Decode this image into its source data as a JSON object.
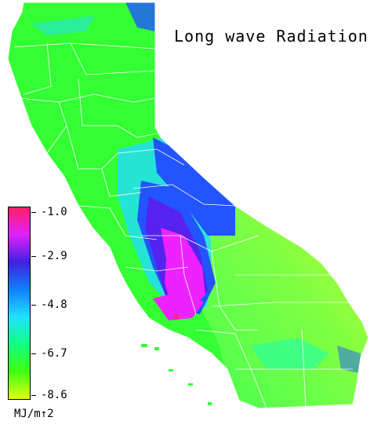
{
  "title": "Long wave Radiation",
  "legend": {
    "unit": "MJ/m↑2",
    "ticks": [
      "-1.0",
      "-2.9",
      "-4.8",
      "-6.7",
      "-8.6"
    ],
    "colors": [
      "#ff2060",
      "#e020ff",
      "#4020e0",
      "#1080ff",
      "#20e0ff",
      "#10ff80",
      "#40ff10",
      "#e0ff10"
    ]
  },
  "map": {
    "region": "California",
    "palette": {
      "green": "#33ff33",
      "teal": "#22ffaa",
      "cyan": "#22ddff",
      "blue": "#2255ff",
      "violet": "#5522ee",
      "magenta": "#ee22ff",
      "pink": "#ff2299",
      "yellow": "#ddff33",
      "border": "#ffffff"
    }
  }
}
